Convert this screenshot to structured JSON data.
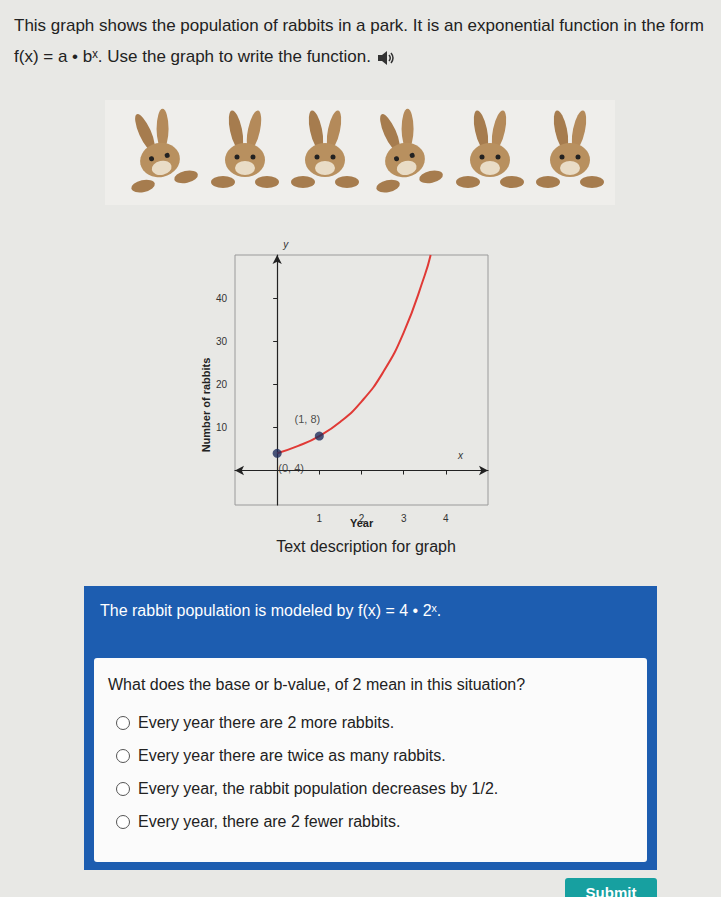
{
  "intro": "This graph shows the population of rabbits in a park. It is an exponential function in the form f(x) = a • bˣ. Use the graph to write the function.",
  "chart_data": {
    "type": "line",
    "xlabel": "Year",
    "ylabel": "Number of rabbits",
    "axis_names": {
      "x": "x",
      "y": "y"
    },
    "series": [
      {
        "type": "line",
        "color": "#e03a36",
        "x": [
          0,
          0.5,
          1,
          1.5,
          2,
          2.5,
          3,
          3.5,
          3.64
        ],
        "values": [
          4,
          5.7,
          8,
          11.3,
          16,
          22.6,
          32,
          45.3,
          50
        ]
      },
      {
        "type": "scatter",
        "color": "#1f2d5c",
        "x": [
          0,
          1
        ],
        "values": [
          4,
          8
        ],
        "value_labels": [
          "(0, 4)",
          "(1, 8)"
        ],
        "data_labels": true
      }
    ],
    "xlim": [
      -1,
      5
    ],
    "ylim": [
      -8,
      50
    ],
    "xticks": [
      1,
      2,
      3,
      4
    ],
    "yticks": [
      10,
      20,
      30,
      40
    ],
    "grid": false
  },
  "link": "Text description for graph",
  "answer_panel": {
    "statement": "The rabbit population is modeled by f(x) = 4 • 2ˣ.",
    "question": "What does the base or b-value, of 2 mean in this situation?",
    "options": [
      "Every year there are 2 more rabbits.",
      "Every year there are twice as many rabbits.",
      "Every year, the rabbit population decreases by 1/2.",
      "Every year, there are 2 fewer rabbits."
    ],
    "button": "Submit"
  }
}
